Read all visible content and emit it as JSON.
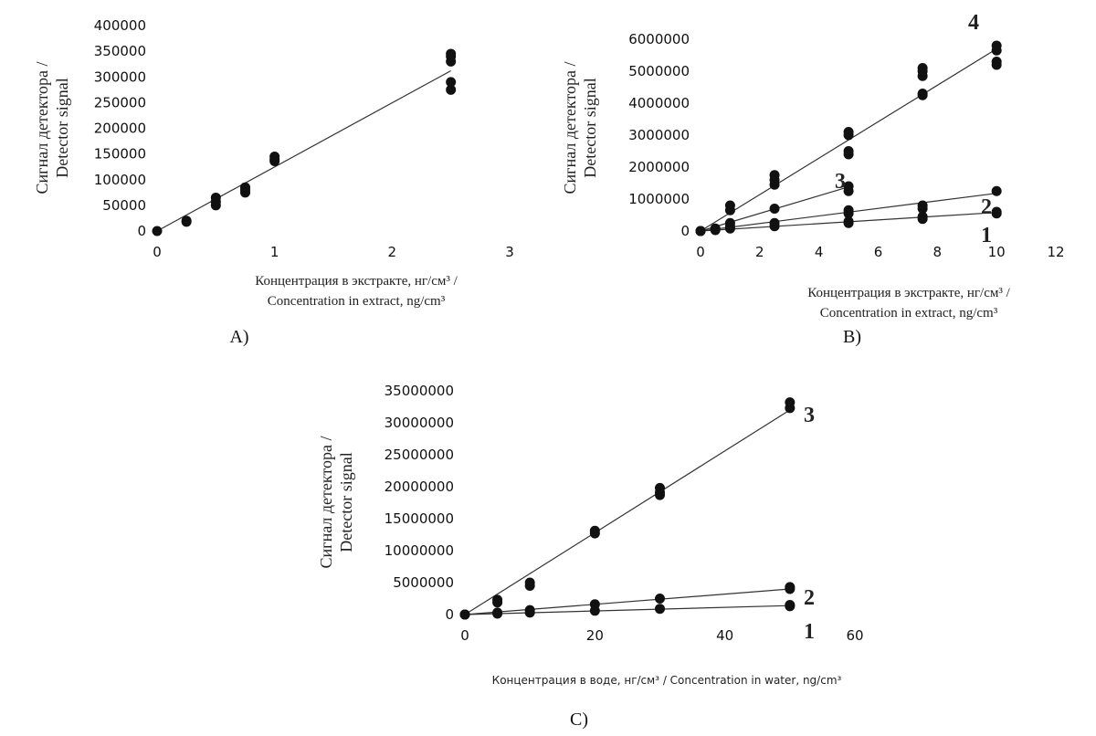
{
  "chart_data": [
    {
      "type": "scatter",
      "panel_label": "A)",
      "ylabel": [
        "Сигнал детектора /",
        "Detector signal"
      ],
      "xlabel": [
        "Концентрация в экстракте, нг/см³ /",
        "Concentration in extract, ng/cm³"
      ],
      "xlim": [
        0,
        3
      ],
      "ylim": [
        0,
        400000
      ],
      "xticks": [
        "0",
        "1",
        "2",
        "3"
      ],
      "yticks": [
        "0",
        "50000",
        "100000",
        "150000",
        "200000",
        "250000",
        "300000",
        "350000",
        "400000"
      ],
      "series": [
        {
          "label": "",
          "points": [
            [
              0,
              0
            ],
            [
              0.25,
              18000
            ],
            [
              0.25,
              20000
            ],
            [
              0.5,
              50000
            ],
            [
              0.5,
              57000
            ],
            [
              0.5,
              65000
            ],
            [
              0.75,
              75000
            ],
            [
              0.75,
              80000
            ],
            [
              0.75,
              85000
            ],
            [
              1,
              136000
            ],
            [
              1,
              140000
            ],
            [
              1,
              145000
            ],
            [
              2.5,
              275000
            ],
            [
              2.5,
              290000
            ],
            [
              2.5,
              330000
            ],
            [
              2.5,
              340000
            ],
            [
              2.5,
              345000
            ]
          ],
          "fit": [
            [
              0,
              0
            ],
            [
              2.5,
              312000
            ]
          ]
        }
      ]
    },
    {
      "type": "scatter",
      "panel_label": "B)",
      "ylabel": [
        "Сигнал детектора /",
        "Detector signal"
      ],
      "xlabel": [
        "Концентрация в экстракте, нг/см³ /",
        "Concentration in extract, ng/cm³"
      ],
      "xlim": [
        0,
        12
      ],
      "ylim": [
        0,
        6000000
      ],
      "xticks": [
        "0",
        "2",
        "4",
        "6",
        "8",
        "10",
        "12"
      ],
      "yticks": [
        "0",
        "1000000",
        "2000000",
        "3000000",
        "4000000",
        "5000000",
        "6000000"
      ],
      "series": [
        {
          "label": "4",
          "points": [
            [
              0,
              0
            ],
            [
              1,
              650000
            ],
            [
              1,
              800000
            ],
            [
              2.5,
              1450000
            ],
            [
              2.5,
              1600000
            ],
            [
              2.5,
              1750000
            ],
            [
              5,
              2400000
            ],
            [
              5,
              2500000
            ],
            [
              5,
              3000000
            ],
            [
              5,
              3100000
            ],
            [
              7.5,
              4250000
            ],
            [
              7.5,
              4300000
            ],
            [
              7.5,
              4850000
            ],
            [
              7.5,
              5000000
            ],
            [
              7.5,
              5100000
            ],
            [
              10,
              5200000
            ],
            [
              10,
              5300000
            ],
            [
              10,
              5650000
            ],
            [
              10,
              5800000
            ]
          ],
          "fit": [
            [
              0,
              0
            ],
            [
              10,
              5700000
            ]
          ]
        },
        {
          "label": "3",
          "points": [
            [
              0,
              0
            ],
            [
              0.5,
              80000
            ],
            [
              1,
              250000
            ],
            [
              2.5,
              700000
            ],
            [
              5,
              1250000
            ],
            [
              5,
              1400000
            ]
          ],
          "fit": [
            [
              0,
              0
            ],
            [
              5,
              1380000
            ]
          ]
        },
        {
          "label": "2",
          "points": [
            [
              0,
              0
            ],
            [
              0.5,
              60000
            ],
            [
              1,
              150000
            ],
            [
              2.5,
              250000
            ],
            [
              5,
              550000
            ],
            [
              5,
              650000
            ],
            [
              7.5,
              700000
            ],
            [
              7.5,
              800000
            ],
            [
              10,
              1250000
            ]
          ],
          "fit": [
            [
              0,
              0
            ],
            [
              10,
              1180000
            ]
          ]
        },
        {
          "label": "1",
          "points": [
            [
              0,
              0
            ],
            [
              0.5,
              30000
            ],
            [
              1,
              80000
            ],
            [
              2.5,
              150000
            ],
            [
              5,
              250000
            ],
            [
              5,
              300000
            ],
            [
              7.5,
              380000
            ],
            [
              7.5,
              450000
            ],
            [
              10,
              550000
            ],
            [
              10,
              600000
            ]
          ],
          "fit": [
            [
              0,
              0
            ],
            [
              10,
              580000
            ]
          ]
        }
      ]
    },
    {
      "type": "scatter",
      "panel_label": "C)",
      "ylabel": [
        "Сигнал детектора /",
        "Detector signal"
      ],
      "xlabel": [
        "Концентрация в воде, нг/см³ / Concentration in water, ng/cm³"
      ],
      "xlim": [
        0,
        60
      ],
      "ylim": [
        0,
        35000000
      ],
      "xticks": [
        "0",
        "20",
        "40",
        "60"
      ],
      "yticks": [
        "0",
        "5000000",
        "10000000",
        "15000000",
        "20000000",
        "25000000",
        "30000000",
        "35000000"
      ],
      "series": [
        {
          "label": "3",
          "points": [
            [
              0,
              0
            ],
            [
              5,
              1900000
            ],
            [
              5,
              2300000
            ],
            [
              10,
              4500000
            ],
            [
              10,
              5000000
            ],
            [
              20,
              12700000
            ],
            [
              20,
              13100000
            ],
            [
              30,
              18700000
            ],
            [
              30,
              19100000
            ],
            [
              30,
              19800000
            ],
            [
              50,
              32300000
            ],
            [
              50,
              33200000
            ]
          ],
          "fit": [
            [
              0,
              0
            ],
            [
              50,
              32000000
            ]
          ]
        },
        {
          "label": "2",
          "points": [
            [
              0,
              0
            ],
            [
              5,
              300000
            ],
            [
              10,
              700000
            ],
            [
              20,
              1600000
            ],
            [
              30,
              2500000
            ],
            [
              50,
              4000000
            ],
            [
              50,
              4300000
            ]
          ],
          "fit": [
            [
              0,
              0
            ],
            [
              50,
              4000000
            ]
          ]
        },
        {
          "label": "1",
          "points": [
            [
              0,
              0
            ],
            [
              5,
              150000
            ],
            [
              10,
              300000
            ],
            [
              20,
              600000
            ],
            [
              30,
              900000
            ],
            [
              50,
              1300000
            ],
            [
              50,
              1500000
            ]
          ],
          "fit": [
            [
              0,
              0
            ],
            [
              50,
              1400000
            ]
          ]
        }
      ]
    }
  ]
}
